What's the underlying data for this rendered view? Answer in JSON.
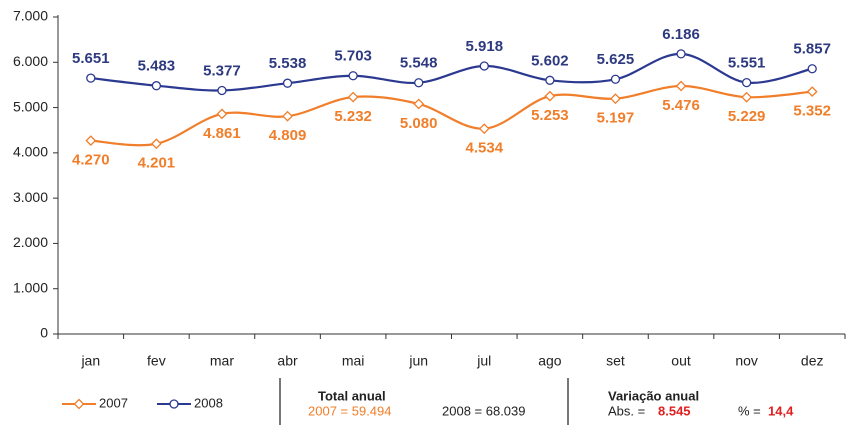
{
  "chart_data": {
    "type": "line",
    "categories": [
      "jan",
      "fev",
      "mar",
      "abr",
      "mai",
      "jun",
      "jul",
      "ago",
      "set",
      "out",
      "nov",
      "dez"
    ],
    "series": [
      {
        "name": "2007",
        "color": "#f07e2a",
        "marker": "diamond",
        "values": [
          4270,
          4201,
          4861,
          4809,
          5232,
          5080,
          4534,
          5253,
          5197,
          5476,
          5229,
          5352
        ],
        "value_labels": [
          "4.270",
          "4.201",
          "4.861",
          "4.809",
          "5.232",
          "5.080",
          "4.534",
          "5.253",
          "5.197",
          "5.476",
          "5.229",
          "5.352"
        ]
      },
      {
        "name": "2008",
        "color": "#2b3990",
        "marker": "circle",
        "values": [
          5651,
          5483,
          5377,
          5538,
          5703,
          5548,
          5918,
          5602,
          5625,
          6186,
          5551,
          5857
        ],
        "value_labels": [
          "5.651",
          "5.483",
          "5.377",
          "5.538",
          "5.703",
          "5.548",
          "5.918",
          "5.602",
          "5.625",
          "6.186",
          "5.551",
          "5.857"
        ]
      }
    ],
    "ylim": [
      0,
      7000
    ],
    "yticks": [
      {
        "value": 0,
        "label": "0"
      },
      {
        "value": 1000,
        "label": "1.000"
      },
      {
        "value": 2000,
        "label": "2.000"
      },
      {
        "value": 3000,
        "label": "3.000"
      },
      {
        "value": 4000,
        "label": "4.000"
      },
      {
        "value": 5000,
        "label": "5.000"
      },
      {
        "value": 6000,
        "label": "6.000"
      },
      {
        "value": 7000,
        "label": "7.000"
      }
    ],
    "smooth": true,
    "footer": {
      "total_title": "Total anual",
      "total_2007": "2007 = 59.494",
      "total_2008": "2008 = 68.039",
      "variation_title": "Variação anual",
      "abs_label": "Abs. =",
      "abs_value": "8.545",
      "pct_label": "% =",
      "pct_value": "14,4"
    }
  }
}
